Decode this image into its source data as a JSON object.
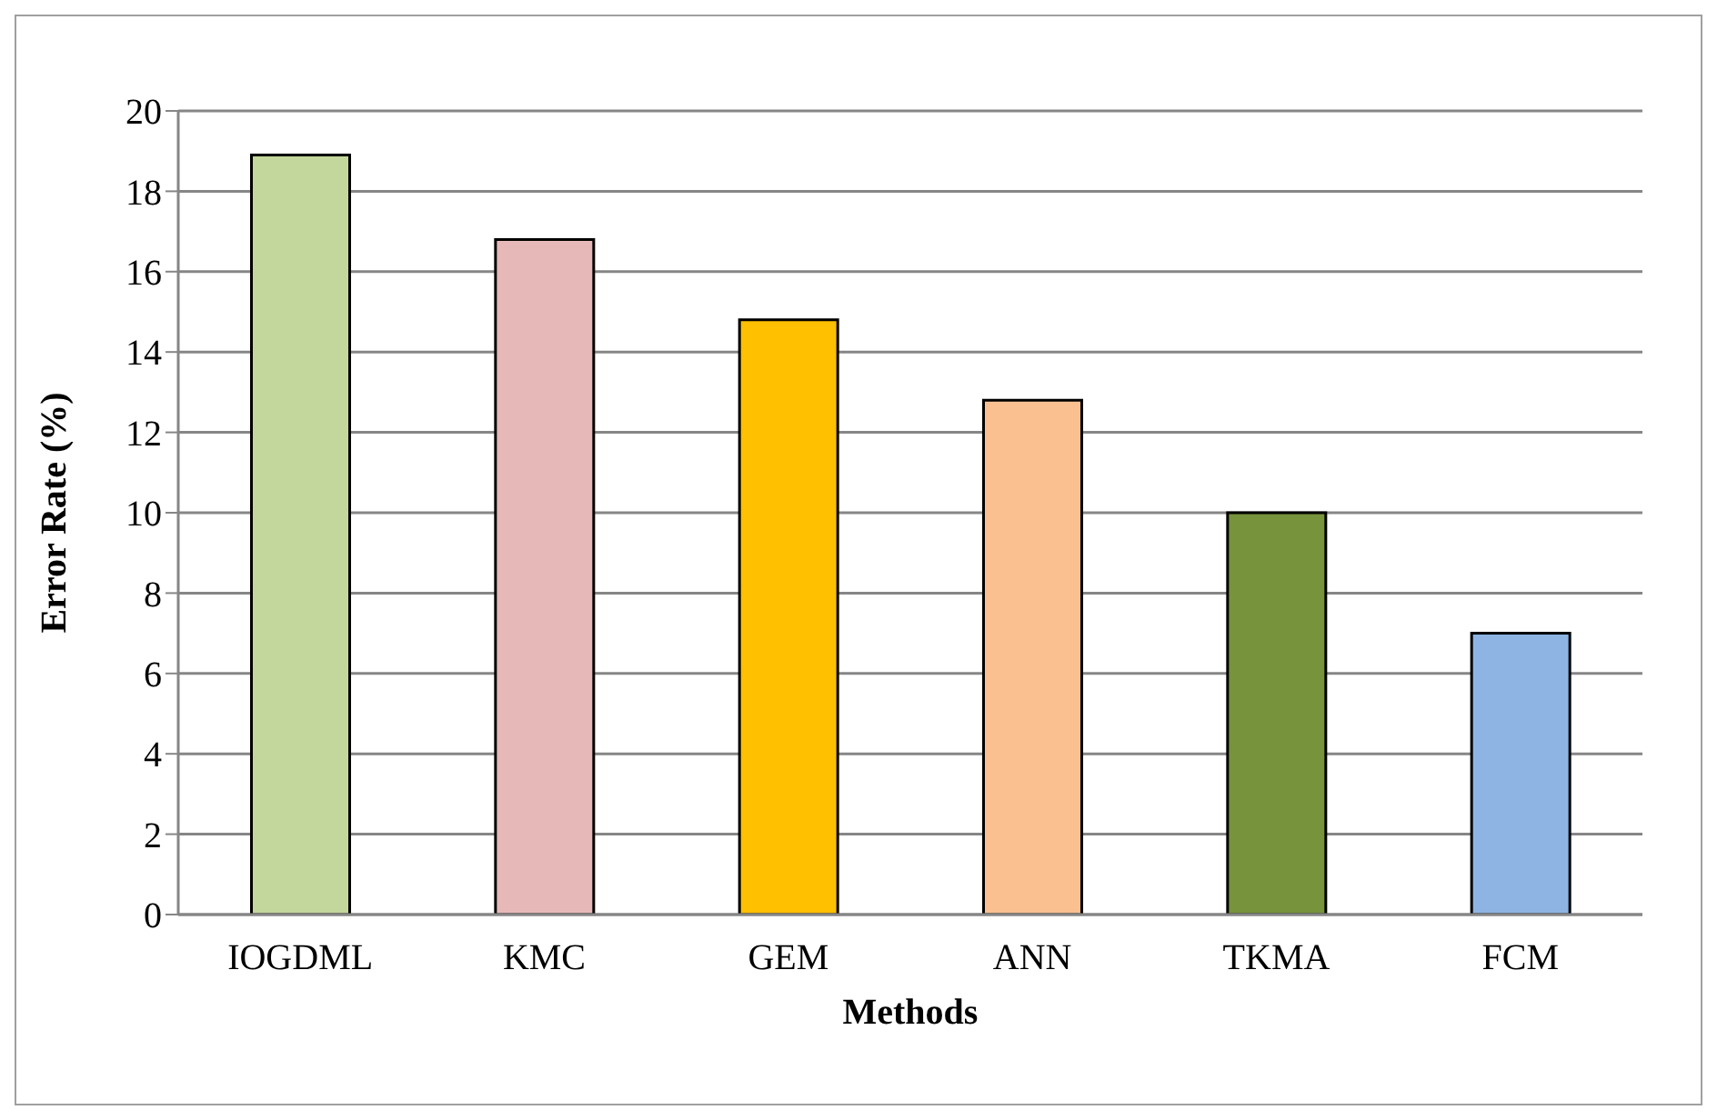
{
  "chart_data": {
    "type": "bar",
    "xlabel": "Methods",
    "ylabel": "Error Rate (%)",
    "categories": [
      "IOGDML",
      "KMC",
      "GEM",
      "ANN",
      "TKMA",
      "FCM"
    ],
    "values": [
      18.9,
      16.8,
      14.8,
      12.8,
      10,
      7
    ],
    "colors": [
      "#c3d69b",
      "#e6b9b8",
      "#ffc000",
      "#fac090",
      "#77933c",
      "#8eb4e3"
    ],
    "ylim": [
      0,
      20
    ],
    "yticks": [
      0,
      2,
      4,
      6,
      8,
      10,
      12,
      14,
      16,
      18,
      20
    ],
    "grid": "y"
  }
}
